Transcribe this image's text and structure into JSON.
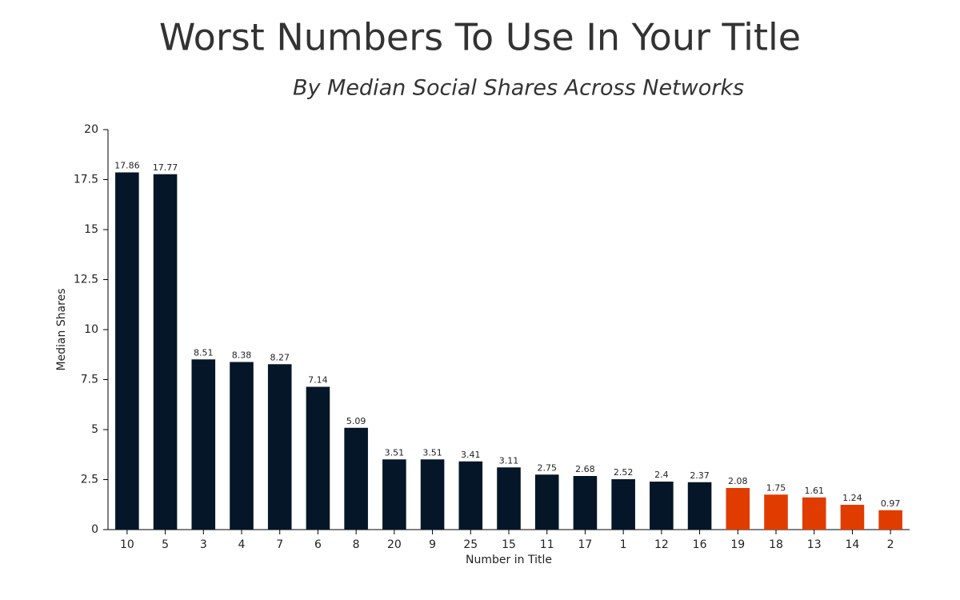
{
  "chart_data": {
    "type": "bar",
    "title": "Worst Numbers To Use In Your Title",
    "subtitle": "By Median Social Shares Across Networks",
    "x_label": "Number in Title",
    "y_label": "Median Shares",
    "categories": [
      "10",
      "5",
      "3",
      "4",
      "7",
      "6",
      "8",
      "20",
      "9",
      "25",
      "15",
      "11",
      "17",
      "1",
      "12",
      "16",
      "19",
      "18",
      "13",
      "14",
      "2"
    ],
    "values": [
      17.86,
      17.77,
      8.51,
      8.38,
      8.27,
      7.14,
      5.09,
      3.51,
      3.51,
      3.41,
      3.11,
      2.75,
      2.68,
      2.52,
      2.4,
      2.37,
      2.08,
      1.75,
      1.61,
      1.24,
      0.97
    ],
    "colors": [
      "#041627",
      "#041627",
      "#041627",
      "#041627",
      "#041627",
      "#041627",
      "#041627",
      "#041627",
      "#041627",
      "#041627",
      "#041627",
      "#041627",
      "#041627",
      "#041627",
      "#041627",
      "#041627",
      "#e03c00",
      "#e03c00",
      "#e03c00",
      "#e03c00",
      "#e03c00"
    ],
    "ylim": [
      0,
      20
    ],
    "yticks": [
      0,
      2.5,
      5,
      7.5,
      10,
      12.5,
      15,
      17.5,
      20
    ],
    "grid": false
  }
}
